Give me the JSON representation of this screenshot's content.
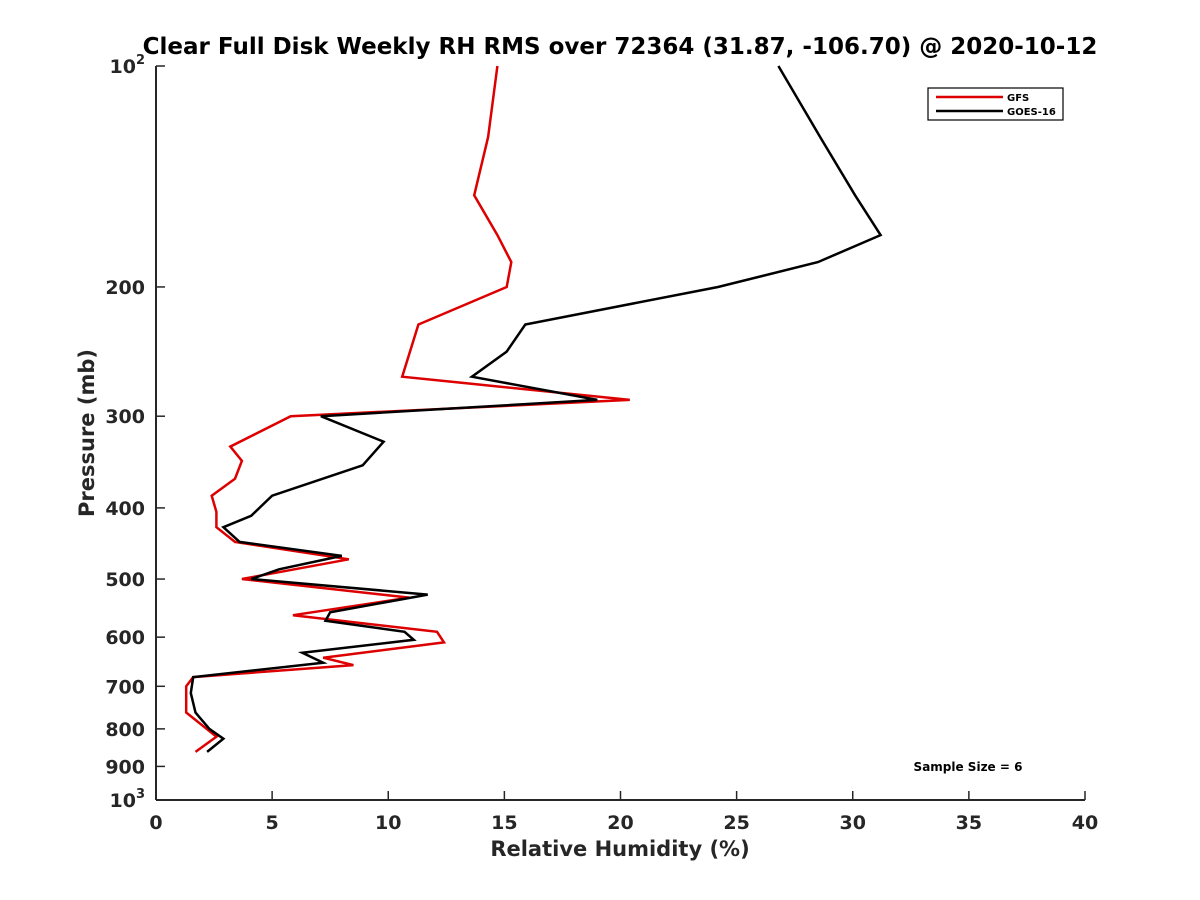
{
  "chart_data": {
    "type": "line",
    "title": "Clear Full Disk Weekly RH RMS over 72364 (31.87, -106.70) @ 2020-10-12",
    "xlabel": "Relative Humidity (%)",
    "ylabel": "Pressure (mb)",
    "xlim": [
      0,
      40
    ],
    "ylim": [
      100,
      1000
    ],
    "y_scale": "log",
    "y_reversed": true,
    "x_ticks": [
      "0",
      "5",
      "10",
      "15",
      "20",
      "25",
      "30",
      "35",
      "40"
    ],
    "y_ticks": [
      {
        "value": 100,
        "base": "10",
        "exp": "2"
      },
      {
        "value": 200,
        "label": "200"
      },
      {
        "value": 300,
        "label": "300"
      },
      {
        "value": 400,
        "label": "400"
      },
      {
        "value": 500,
        "label": "500"
      },
      {
        "value": 600,
        "label": "600"
      },
      {
        "value": 700,
        "label": "700"
      },
      {
        "value": 800,
        "label": "800"
      },
      {
        "value": 900,
        "label": "900"
      },
      {
        "value": 1000,
        "base": "10",
        "exp": "3"
      }
    ],
    "legend_position": "top-right",
    "annotation": "Sample Size = 6",
    "series": [
      {
        "name": "GFS",
        "color": "#dd0000",
        "points": [
          [
            14.7,
            100
          ],
          [
            14.3,
            125
          ],
          [
            13.7,
            150
          ],
          [
            14.7,
            170
          ],
          [
            15.3,
            185
          ],
          [
            15.1,
            200
          ],
          [
            11.3,
            225
          ],
          [
            10.6,
            265
          ],
          [
            20.4,
            285
          ],
          [
            5.8,
            300
          ],
          [
            3.2,
            330
          ],
          [
            3.7,
            345
          ],
          [
            3.4,
            365
          ],
          [
            2.4,
            385
          ],
          [
            2.6,
            405
          ],
          [
            2.6,
            425
          ],
          [
            3.4,
            445
          ],
          [
            8.3,
            470
          ],
          [
            3.7,
            500
          ],
          [
            10.9,
            530
          ],
          [
            5.9,
            560
          ],
          [
            12.1,
            590
          ],
          [
            12.4,
            610
          ],
          [
            7.2,
            640
          ],
          [
            8.5,
            655
          ],
          [
            1.6,
            680
          ],
          [
            1.3,
            700
          ],
          [
            1.3,
            760
          ],
          [
            2.6,
            820
          ],
          [
            1.7,
            860
          ]
        ]
      },
      {
        "name": "GOES-16",
        "color": "#000000",
        "points": [
          [
            26.8,
            100
          ],
          [
            28.6,
            125
          ],
          [
            30.1,
            150
          ],
          [
            31.2,
            170
          ],
          [
            28.5,
            185
          ],
          [
            24.2,
            200
          ],
          [
            15.9,
            225
          ],
          [
            15.1,
            245
          ],
          [
            13.6,
            265
          ],
          [
            19.0,
            285
          ],
          [
            7.1,
            300
          ],
          [
            9.8,
            325
          ],
          [
            8.9,
            350
          ],
          [
            5.0,
            385
          ],
          [
            4.1,
            410
          ],
          [
            2.9,
            425
          ],
          [
            3.6,
            445
          ],
          [
            8.0,
            465
          ],
          [
            5.3,
            485
          ],
          [
            4.1,
            500
          ],
          [
            11.7,
            525
          ],
          [
            7.5,
            555
          ],
          [
            7.3,
            570
          ],
          [
            10.7,
            590
          ],
          [
            11.1,
            605
          ],
          [
            6.3,
            630
          ],
          [
            7.2,
            650
          ],
          [
            1.6,
            680
          ],
          [
            1.5,
            715
          ],
          [
            1.7,
            760
          ],
          [
            2.3,
            800
          ],
          [
            2.9,
            825
          ],
          [
            2.2,
            860
          ]
        ]
      }
    ]
  }
}
